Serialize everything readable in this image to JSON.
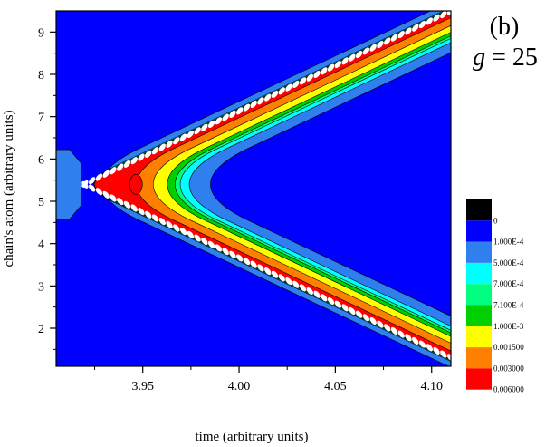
{
  "chart_data": {
    "type": "contour",
    "panel_label": "(b)",
    "parameter_label": "g = 25",
    "xlabel": "time (arbitrary units)",
    "ylabel": "chain's atom (arbitrary units)",
    "xlim": [
      3.905,
      4.11
    ],
    "ylim": [
      1.1,
      9.5
    ],
    "x_ticks": [
      {
        "value": 3.95,
        "label": "3.95"
      },
      {
        "value": 4.0,
        "label": "4.00"
      },
      {
        "value": 4.05,
        "label": "4.05"
      },
      {
        "value": 4.1,
        "label": "4.10"
      }
    ],
    "y_ticks": [
      {
        "value": 2,
        "label": "2"
      },
      {
        "value": 3,
        "label": "3"
      },
      {
        "value": 4,
        "label": "4"
      },
      {
        "value": 5,
        "label": "5"
      },
      {
        "value": 6,
        "label": "6"
      },
      {
        "value": 7,
        "label": "7"
      },
      {
        "value": 8,
        "label": "8"
      },
      {
        "value": 9,
        "label": "9"
      }
    ],
    "vertex": {
      "x": 3.918,
      "y": 5.4
    },
    "arm_slope_atoms_per_time": 21.5,
    "levels": [
      {
        "label": "0",
        "color": "#000000"
      },
      {
        "label": "1.000E-4",
        "color": "#0000ff"
      },
      {
        "label": "5.000E-4",
        "color": "#2f7fef"
      },
      {
        "label": "7.000E-4",
        "color": "#00ffff"
      },
      {
        "label": "7.100E-4",
        "color": "#00ff80"
      },
      {
        "label": "1.000E-3",
        "color": "#00d000"
      },
      {
        "label": "0.001500",
        "color": "#ffff00"
      },
      {
        "label": "0.003000",
        "color": "#ff8000"
      },
      {
        "label": "0.006000",
        "color": "#ff0000"
      }
    ],
    "bands": [
      {
        "color": "#2f7fef",
        "outer_dt": 0.0,
        "inner_dt": 0.0472
      },
      {
        "color": "#00ffff",
        "outer_dt": 0.0,
        "inner_dt": 0.0362
      },
      {
        "color": "#00ff80",
        "outer_dt": 0.0,
        "inner_dt": 0.0315
      },
      {
        "color": "#00d000",
        "outer_dt": 0.0,
        "inner_dt": 0.0288
      },
      {
        "color": "#ffff00",
        "outer_dt": 0.0,
        "inner_dt": 0.0248
      },
      {
        "color": "#ff8000",
        "outer_dt": 0.0,
        "inner_dt": 0.0175
      },
      {
        "color": "#ff0000",
        "outer_dt": 0.0,
        "inner_dt": 0.0088
      }
    ]
  }
}
